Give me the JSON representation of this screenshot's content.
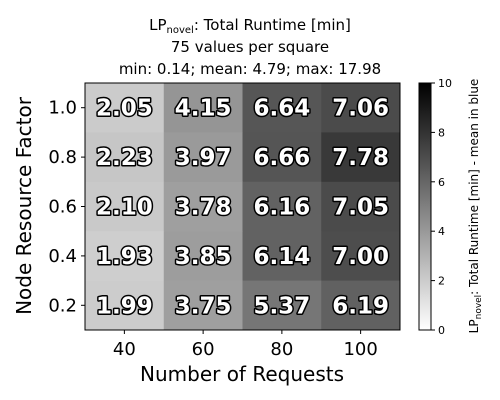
{
  "title": {
    "prefix": "LP",
    "subscript": "novel",
    "suffix": ": Total Runtime [min]",
    "line2": "75 values per square",
    "line3": "min: 0.14; mean: 4.79; max: 17.98"
  },
  "chart_data": {
    "type": "heatmap",
    "xlabel": "Number of Requests",
    "ylabel": "Node Resource Factor",
    "x_categories": [
      "40",
      "60",
      "80",
      "100"
    ],
    "y_categories": [
      "1.0",
      "0.8",
      "0.6",
      "0.4",
      "0.2"
    ],
    "values": [
      [
        2.05,
        4.15,
        6.64,
        7.06
      ],
      [
        2.23,
        3.97,
        6.66,
        7.78
      ],
      [
        2.1,
        3.78,
        6.16,
        7.05
      ],
      [
        1.93,
        3.85,
        6.14,
        7.0
      ],
      [
        1.99,
        3.75,
        5.37,
        6.19
      ]
    ],
    "cell_labels": [
      [
        "2.05",
        "4.15",
        "6.64",
        "7.06"
      ],
      [
        "2.23",
        "3.97",
        "6.66",
        "7.78"
      ],
      [
        "2.10",
        "3.78",
        "6.16",
        "7.05"
      ],
      [
        "1.93",
        "3.85",
        "6.14",
        "7.00"
      ],
      [
        "1.99",
        "3.75",
        "5.37",
        "6.19"
      ]
    ],
    "colormap": "gray_r",
    "vmin": 0,
    "vmax": 10,
    "colorbar": {
      "ticks": [
        "0",
        "2",
        "4",
        "6",
        "8",
        "10"
      ],
      "label_prefix": "LP",
      "label_subscript": "novel",
      "label_suffix": ": Total Runtime [min] - mean in blue"
    },
    "text_color": "#ffffff",
    "text_outline_color": "#000000"
  }
}
